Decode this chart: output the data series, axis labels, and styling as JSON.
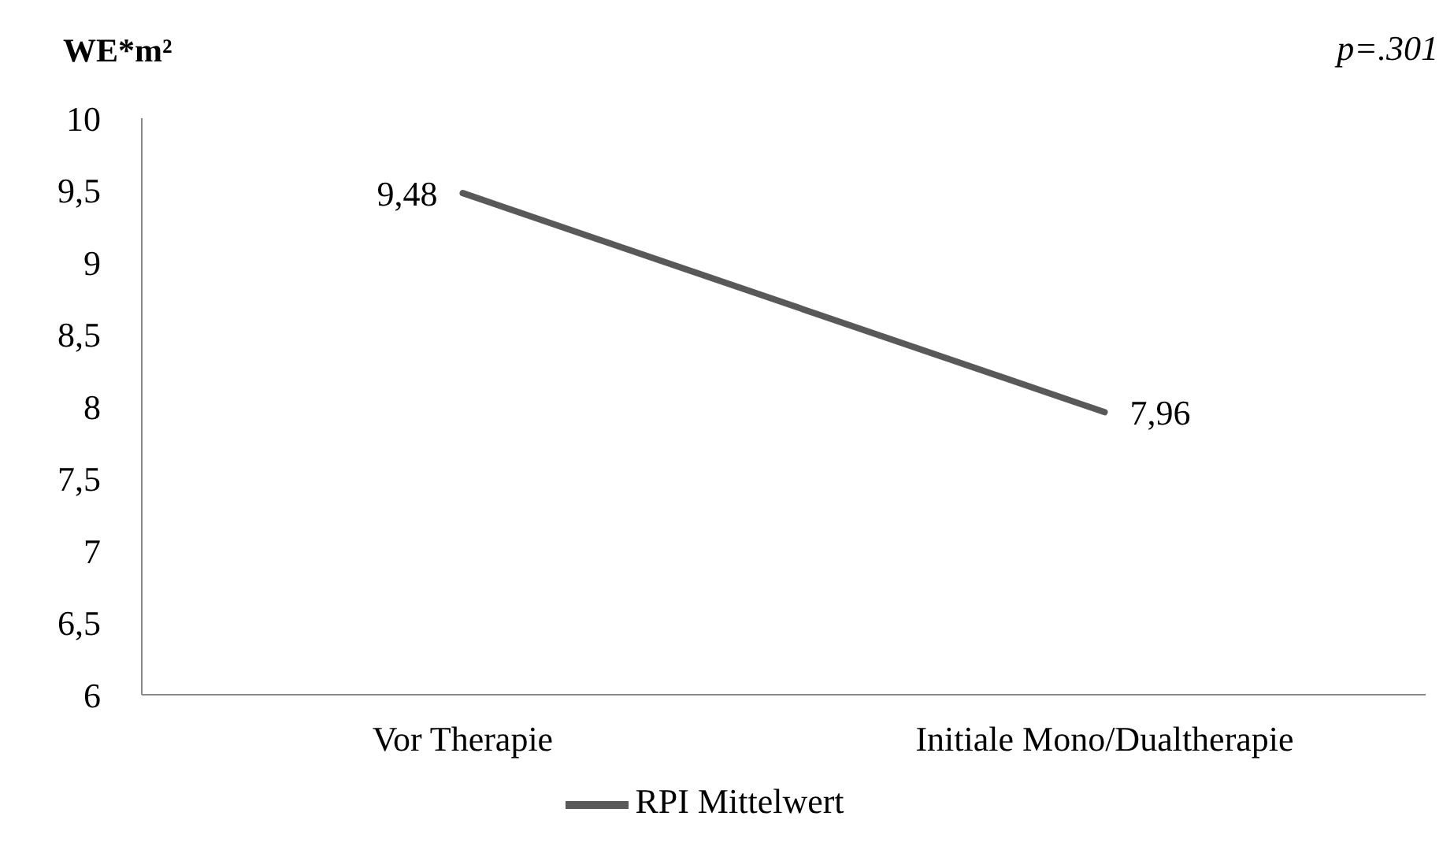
{
  "chart_data": {
    "type": "line",
    "ylabel": "WE*m²",
    "annotations": [
      "p=.301"
    ],
    "categories": [
      "Vor Therapie",
      "Initiale Mono/Dualtherapie"
    ],
    "series": [
      {
        "name": "RPI Mittelwert",
        "color": "#595959",
        "values": [
          9.48,
          7.96
        ],
        "value_labels": [
          "9,48",
          "7,96"
        ]
      }
    ],
    "ylim": [
      6,
      10
    ],
    "yticks": [
      6,
      {
        "value": 6.5,
        "label": "6,5"
      },
      7,
      {
        "value": 7.5,
        "label": "7,5"
      },
      8,
      {
        "value": 8.5,
        "label": "8,5"
      },
      9,
      {
        "value": 9.5,
        "label": "9,5"
      },
      10
    ],
    "grid": false,
    "legend": "bottom",
    "marker": "none",
    "line_style": "solid"
  }
}
